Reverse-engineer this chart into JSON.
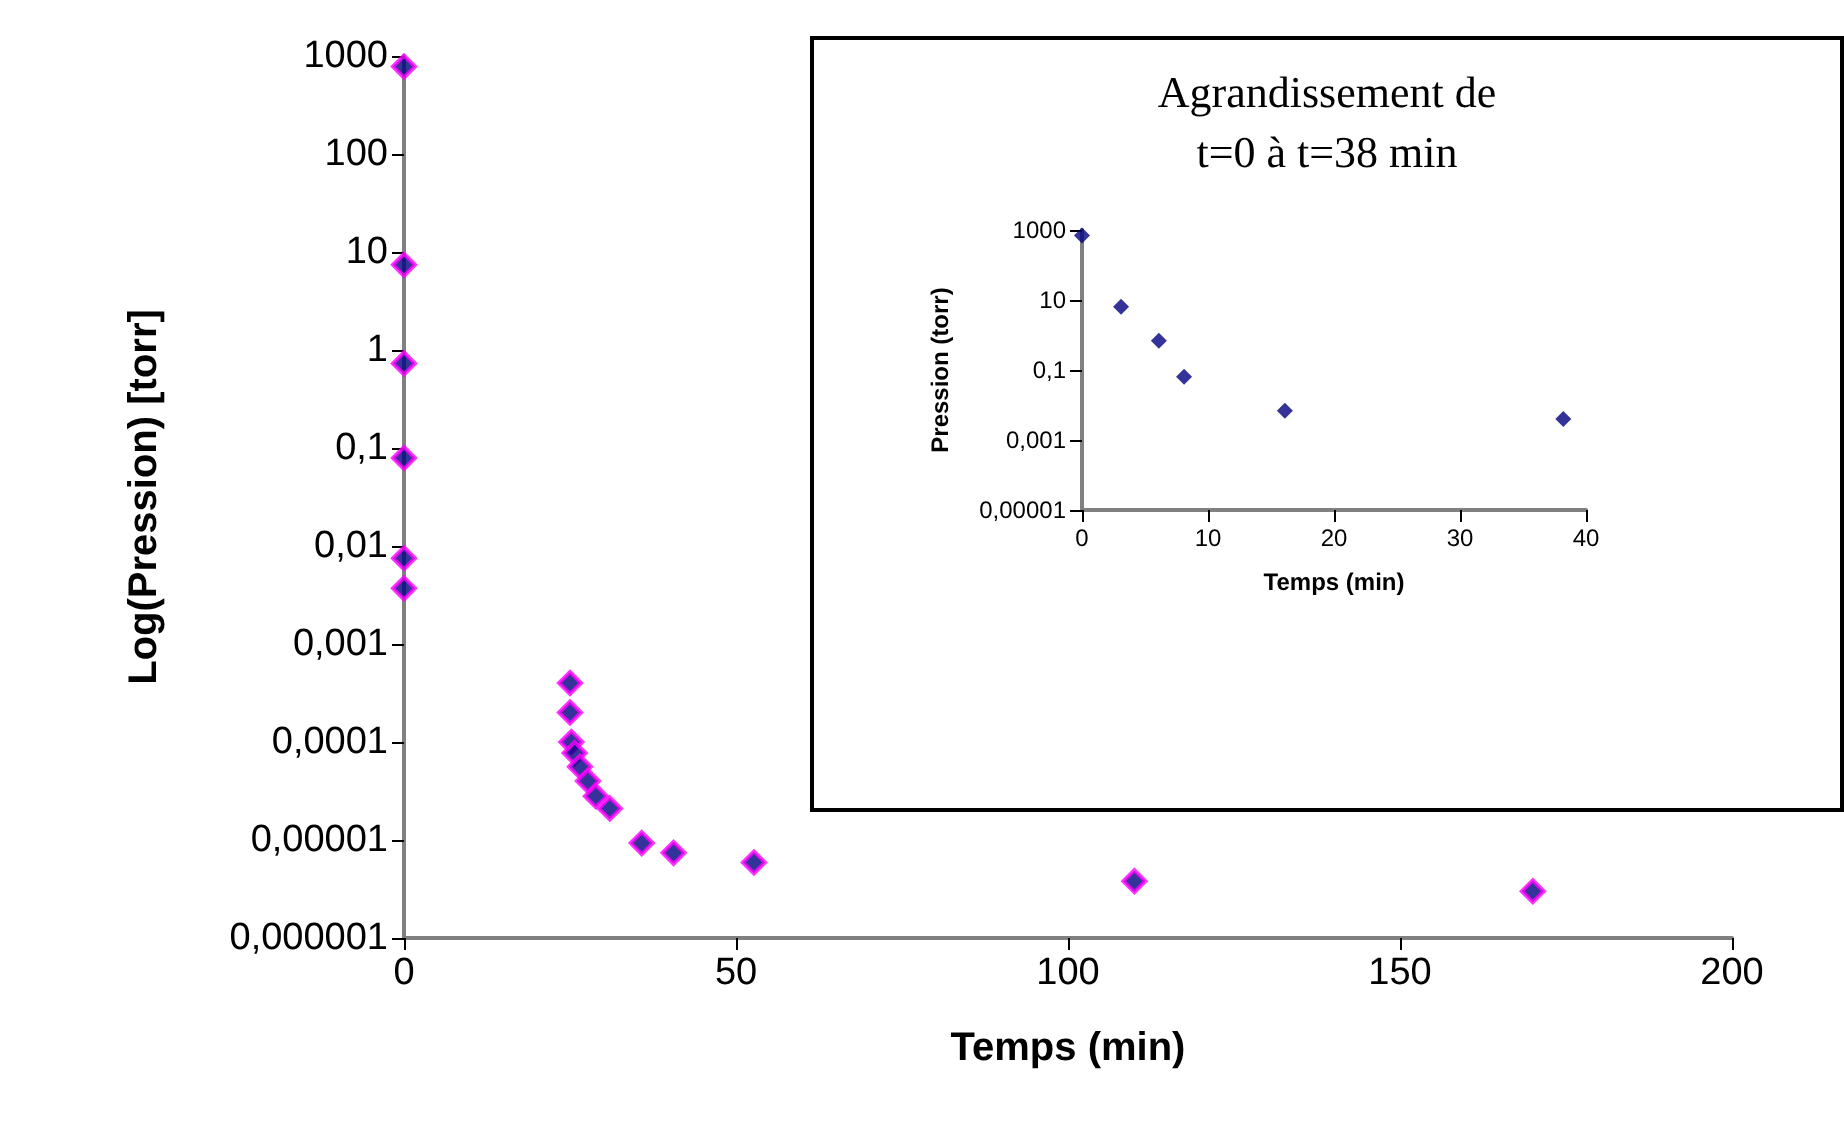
{
  "chart_data": [
    {
      "type": "scatter",
      "xlabel": "Temps (min)",
      "ylabel": "Log(Pression) [torr]",
      "log": "y",
      "marker": "diamond",
      "grid": false,
      "xlim": [
        0,
        200
      ],
      "xticks": [
        0,
        50,
        100,
        150,
        200
      ],
      "ylim": [
        1e-06,
        1000
      ],
      "yticks": [
        {
          "value": 1e-06,
          "label": "0,000001"
        },
        {
          "value": 1e-05,
          "label": "0,00001"
        },
        {
          "value": 0.0001,
          "label": "0,0001"
        },
        {
          "value": 0.001,
          "label": "0,001"
        },
        {
          "value": 0.01,
          "label": "0,01"
        },
        {
          "value": 0.1,
          "label": "0,1"
        },
        1,
        10,
        100,
        1000
      ],
      "series": [
        {
          "color": "#000080",
          "x": [
            0,
            0,
            0,
            0,
            0,
            0,
            25,
            25,
            25.2,
            25.7,
            26.5,
            27.7,
            28.9,
            31,
            35.8,
            40.6,
            52.7,
            110,
            170
          ],
          "values": [
            780,
            7.4,
            0.73,
            0.079,
            0.0075,
            0.0037,
            0.0004,
            0.0002,
            0.0001,
            7.7e-05,
            5.6e-05,
            4e-05,
            2.8e-05,
            2.1e-05,
            9.3e-06,
            7.4e-06,
            5.9e-06,
            3.8e-06,
            3e-06
          ]
        }
      ]
    },
    {
      "type": "scatter",
      "title": "Agrandissement de\nt=0 à t=38 min",
      "xlabel": "Temps (min)",
      "ylabel": "Pression (torr)",
      "log": "y",
      "marker": "diamond",
      "grid": false,
      "xlim": [
        0,
        40
      ],
      "xticks": [
        0,
        10,
        20,
        30,
        40
      ],
      "ylim": [
        1e-05,
        1000
      ],
      "yticks": [
        {
          "value": 1e-05,
          "label": "0,00001"
        },
        {
          "value": 0.001,
          "label": "0,001"
        },
        {
          "value": 0.1,
          "label": "0,1"
        },
        10,
        1000
      ],
      "series": [
        {
          "color": "#000080",
          "x": [
            0,
            3.1,
            6.1,
            8.1,
            16.1,
            38.2
          ],
          "values": [
            700,
            6.4,
            0.69,
            0.064,
            0.0069,
            0.004
          ]
        }
      ]
    }
  ]
}
